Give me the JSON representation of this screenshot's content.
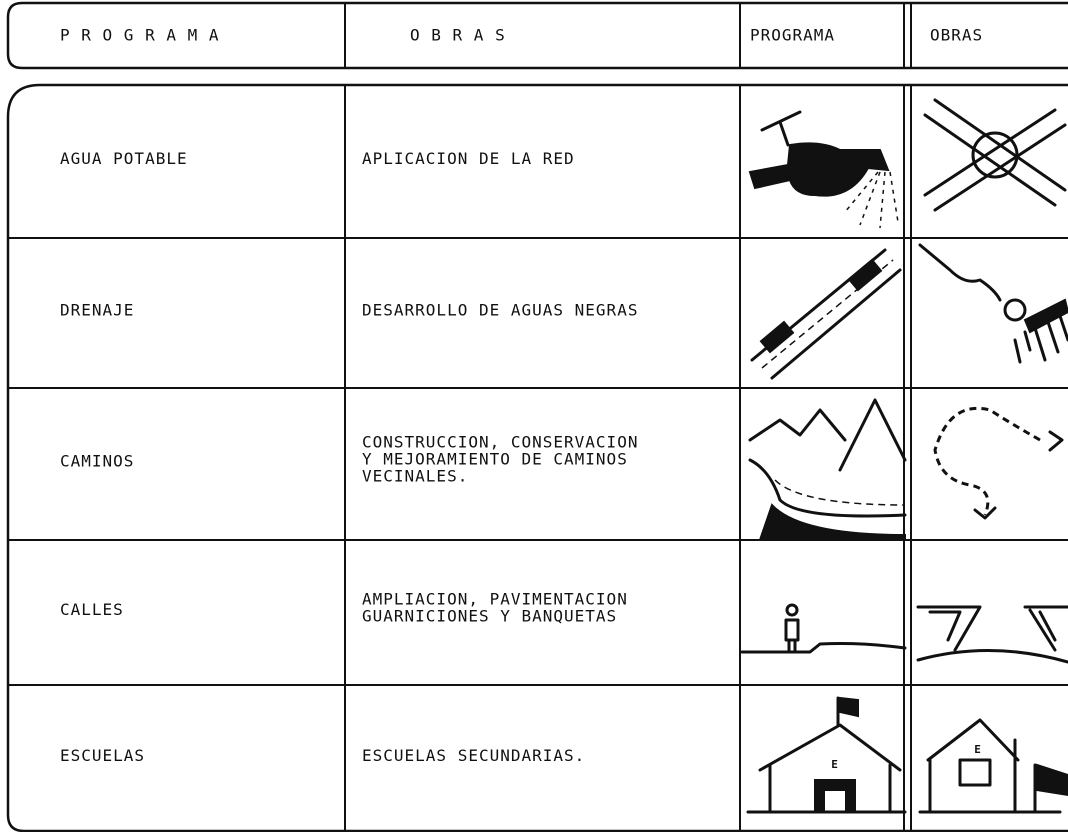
{
  "header": [
    "P R O G R A M A",
    "O B R A S",
    "PROGRAMA",
    "OBRAS"
  ],
  "rows": [
    {
      "programa": "AGUA POTABLE",
      "obra": [
        "APLICACION DE LA RED"
      ]
    },
    {
      "programa": "DRENAJE",
      "obra": [
        "DESARROLLO DE AGUAS NEGRAS"
      ]
    },
    {
      "programa": "CAMINOS",
      "obra": [
        "CONSTRUCCION, CONSERVACION",
        "Y MEJORAMIENTO DE CAMINOS",
        "VECINALES."
      ]
    },
    {
      "programa": "CALLES",
      "obra": [
        "AMPLIACION, PAVIMENTACION",
        "GUARNICIONES Y BANQUETAS"
      ]
    },
    {
      "programa": "ESCUELAS",
      "obra": [
        "ESCUELAS SECUNDARIAS."
      ],
      "icon_letter": "E"
    }
  ]
}
